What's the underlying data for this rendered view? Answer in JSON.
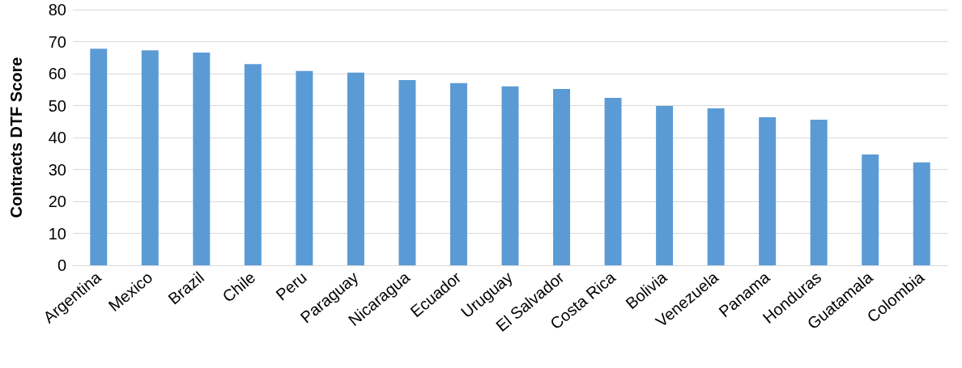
{
  "chart_data": {
    "type": "bar",
    "ylabel": "Contracts DTF Score",
    "categories": [
      "Argentina",
      "Mexico",
      "Brazil",
      "Chile",
      "Peru",
      "Paraguay",
      "Nicaragua",
      "Ecuador",
      "Uruguay",
      "El Salvador",
      "Costa Rica",
      "Bolivia",
      "Venezuela",
      "Panama",
      "Honduras",
      "Guatamala",
      "Colombia"
    ],
    "values": [
      67.8,
      67.3,
      66.6,
      63.0,
      60.8,
      60.3,
      58.0,
      57.0,
      56.0,
      55.2,
      52.4,
      49.9,
      49.1,
      46.3,
      45.6,
      34.7,
      32.2
    ],
    "color": "#5b9bd5",
    "ylim": [
      0,
      80
    ],
    "yticks": [
      0,
      10,
      20,
      30,
      40,
      50,
      60,
      70,
      80
    ],
    "grid": "y"
  }
}
